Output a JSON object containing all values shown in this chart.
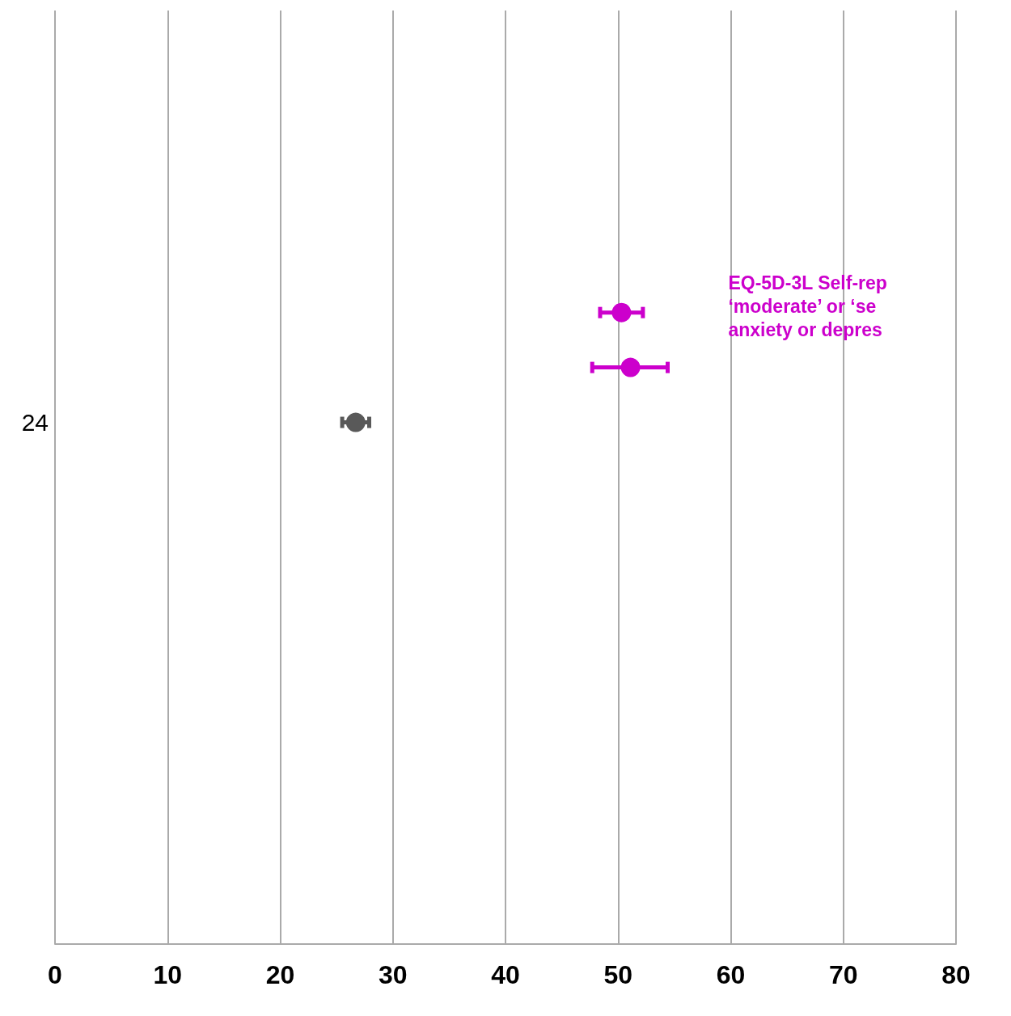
{
  "chart_data": {
    "type": "scatter",
    "orientation": "horizontal",
    "categories": [
      null,
      null,
      null,
      null,
      null,
      null,
      null,
      "24",
      null,
      null,
      null,
      null,
      null,
      null,
      null,
      null,
      null
    ],
    "xlim": [
      0,
      80
    ],
    "xticks": [
      0,
      10,
      20,
      30,
      40,
      50,
      60,
      70,
      80
    ],
    "grid": "x",
    "marker": "circle",
    "series": [
      {
        "name": "EQ-5D-3L Self-rep\n‘moderate’ or ‘se\nanxiety or depres",
        "color": "#cc00cc",
        "values": [
          null,
          null,
          null,
          null,
          null,
          50.3,
          51.1,
          null,
          null,
          null,
          null,
          null,
          null,
          null,
          null,
          null,
          null
        ],
        "errors": [
          null,
          null,
          null,
          null,
          null,
          [
            48.4,
            52.2
          ],
          [
            47.7,
            54.4
          ],
          null,
          null,
          null,
          null,
          null,
          null,
          null,
          null,
          null,
          null
        ]
      },
      {
        "color": "#595959",
        "values": [
          null,
          null,
          null,
          null,
          null,
          null,
          null,
          26.7,
          null,
          null,
          null,
          null,
          null,
          null,
          null,
          null,
          null
        ],
        "errors": [
          null,
          null,
          null,
          null,
          null,
          null,
          null,
          [
            25.5,
            27.9
          ],
          null,
          null,
          null,
          null,
          null,
          null,
          null,
          null,
          null
        ]
      }
    ]
  }
}
